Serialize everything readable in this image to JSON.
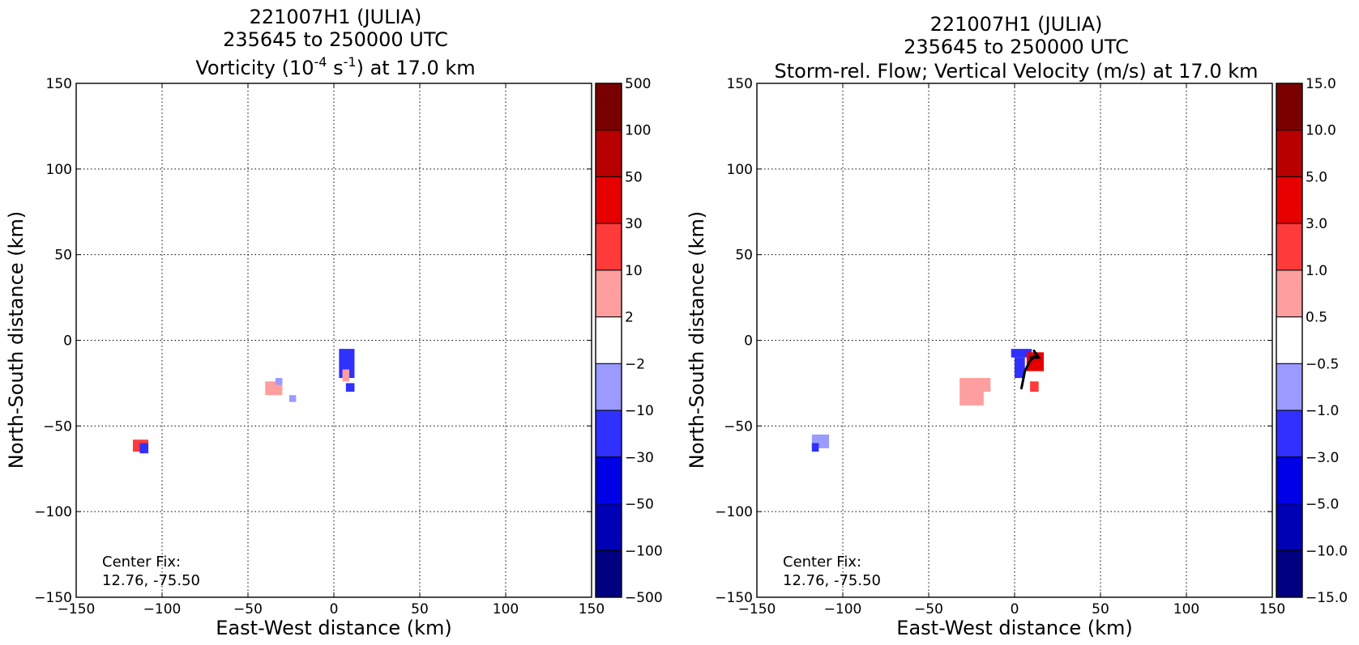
{
  "chart_data": [
    {
      "type": "heatmap",
      "title_lines": [
        "221007H1 (JULIA)",
        "235645 to 250000 UTC"
      ],
      "title_line3": {
        "pre": "Vorticity (10",
        "sup1": "-4",
        "mid": " s",
        "sup2": "-1",
        "post": ") at 17.0 km"
      },
      "xlabel": "East-West distance (km)",
      "ylabel": "North-South distance (km)",
      "xlim": [
        -150,
        150
      ],
      "ylim": [
        -150,
        150
      ],
      "xticks": [
        "−150",
        "−100",
        "−50",
        "0",
        "50",
        "100",
        "150"
      ],
      "yticks": [
        "150",
        "100",
        "50",
        "0",
        "−50",
        "−100",
        "−150"
      ],
      "grid": true,
      "colorbar": {
        "labels": [
          "500",
          "100",
          "50",
          "30",
          "10",
          "2",
          "−2",
          "−10",
          "−30",
          "−50",
          "−100",
          "−500"
        ],
        "colors": [
          "#7a0000",
          "#b80000",
          "#e60000",
          "#ff3a3a",
          "#ff9e9e",
          "#ffffff",
          "#9a9aff",
          "#3030ff",
          "#0000e6",
          "#0000b4",
          "#000080"
        ]
      },
      "annotation": [
        "Center Fix:",
        "12.76, -75.50"
      ],
      "features": [
        {
          "x": [
            3,
            12
          ],
          "y": [
            -22,
            -5
          ],
          "color": "#3030ff"
        },
        {
          "x": [
            5,
            9
          ],
          "y": [
            -24,
            -17
          ],
          "color": "#ff9e9e"
        },
        {
          "x": [
            7,
            12
          ],
          "y": [
            -30,
            -25
          ],
          "color": "#3030ff"
        },
        {
          "x": [
            -40,
            -30
          ],
          "y": [
            -32,
            -24
          ],
          "color": "#ff9e9e"
        },
        {
          "x": [
            -34,
            -30
          ],
          "y": [
            -26,
            -22
          ],
          "color": "#9a9aff"
        },
        {
          "x": [
            -26,
            -22
          ],
          "y": [
            -36,
            -32
          ],
          "color": "#9a9aff"
        },
        {
          "x": [
            -117,
            -108
          ],
          "y": [
            -65,
            -58
          ],
          "color": "#ff3a3a"
        },
        {
          "x": [
            -113,
            -108
          ],
          "y": [
            -66,
            -60
          ],
          "color": "#3030ff"
        }
      ]
    },
    {
      "type": "heatmap",
      "title_lines": [
        "221007H1 (JULIA)",
        "235645 to 250000 UTC",
        "Storm-rel. Flow; Vertical Velocity (m/s) at 17.0 km"
      ],
      "xlabel": "East-West distance (km)",
      "ylabel": "North-South distance (km)",
      "xlim": [
        -150,
        150
      ],
      "ylim": [
        -150,
        150
      ],
      "xticks": [
        "−150",
        "−100",
        "−50",
        "0",
        "50",
        "100",
        "150"
      ],
      "yticks": [
        "150",
        "100",
        "50",
        "0",
        "−50",
        "−100",
        "−150"
      ],
      "grid": true,
      "colorbar": {
        "labels": [
          "15.0",
          "10.0",
          "5.0",
          "3.0",
          "1.0",
          "0.5",
          "−0.5",
          "−1.0",
          "−3.0",
          "−5.0",
          "−10.0",
          "−15.0"
        ],
        "colors": [
          "#7a0000",
          "#b80000",
          "#e60000",
          "#ff3a3a",
          "#ff9e9e",
          "#ffffff",
          "#9a9aff",
          "#3030ff",
          "#0000e6",
          "#0000b4",
          "#000080"
        ]
      },
      "annotation": [
        "Center Fix:",
        "12.76, -75.50"
      ],
      "features": [
        {
          "x": [
            -2,
            10
          ],
          "y": [
            -10,
            -5
          ],
          "color": "#3030ff"
        },
        {
          "x": [
            0,
            6
          ],
          "y": [
            -22,
            -10
          ],
          "color": "#3030ff"
        },
        {
          "x": [
            7,
            17
          ],
          "y": [
            -18,
            -7
          ],
          "color": "#e60000"
        },
        {
          "x": [
            9,
            14
          ],
          "y": [
            -30,
            -24
          ],
          "color": "#ff3a3a"
        },
        {
          "x": [
            -32,
            -18
          ],
          "y": [
            -38,
            -22
          ],
          "color": "#ff9e9e"
        },
        {
          "x": [
            -20,
            -14
          ],
          "y": [
            -30,
            -22
          ],
          "color": "#ff9e9e"
        },
        {
          "x": [
            -118,
            -108
          ],
          "y": [
            -63,
            -55
          ],
          "color": "#9a9aff"
        },
        {
          "x": [
            -118,
            -114
          ],
          "y": [
            -65,
            -60
          ],
          "color": "#3030ff"
        }
      ],
      "vectors": [
        {
          "points": [
            [
              4,
              -28
            ],
            [
              6,
              -18
            ],
            [
              9,
              -12
            ],
            [
              12,
              -9
            ],
            [
              14,
              -10
            ]
          ],
          "color": "#000000"
        }
      ]
    }
  ]
}
